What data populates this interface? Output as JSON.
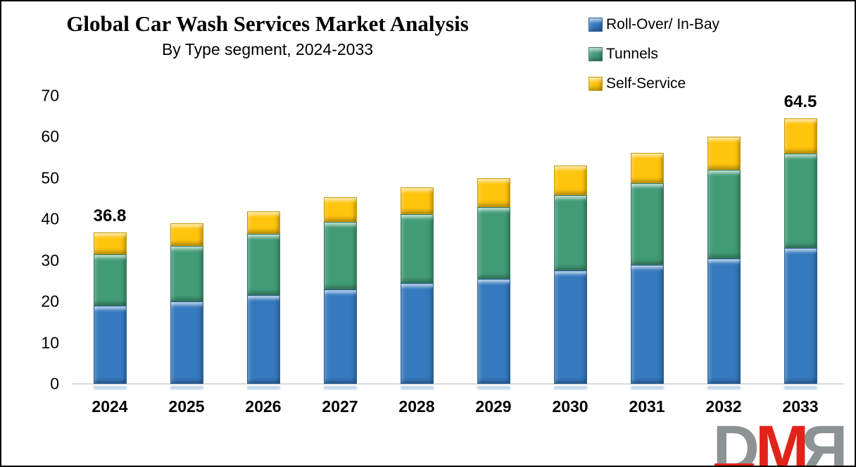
{
  "title": "Global Car Wash Services Market Analysis",
  "subtitle": "By Type segment, 2024-2033",
  "colors": {
    "rollover_blue": "#3579be",
    "tunnels_green": "#419b77",
    "selfservice_yellow": "#ffc40c",
    "baseline_gray": "#d9d9d9",
    "logo_gray": "#8d9394",
    "logo_red": "#e2231a"
  },
  "legend": [
    {
      "label": "Roll-Over/ In-Bay",
      "color": "#3579be"
    },
    {
      "label": "Tunnels",
      "color": "#419b77"
    },
    {
      "label": "Self-Service",
      "color": "#ffc40c"
    }
  ],
  "chart_data": {
    "type": "bar",
    "stacked": true,
    "title": "Global Car Wash Services Market Analysis",
    "subtitle": "By Type segment, 2024-2033",
    "categories": [
      "2024",
      "2025",
      "2026",
      "2027",
      "2028",
      "2029",
      "2030",
      "2031",
      "2032",
      "2033"
    ],
    "series": [
      {
        "name": "Roll-Over/ In-Bay",
        "color": "#3579be",
        "values": [
          19.0,
          20.0,
          21.5,
          23.0,
          24.5,
          25.5,
          27.5,
          29.0,
          30.5,
          33.0
        ]
      },
      {
        "name": "Tunnels",
        "color": "#419b77",
        "values": [
          12.5,
          13.5,
          15.0,
          16.3,
          16.8,
          17.5,
          18.3,
          19.8,
          21.5,
          23.0
        ]
      },
      {
        "name": "Self-Service",
        "color": "#ffc40c",
        "values": [
          5.3,
          5.5,
          5.5,
          6.0,
          6.5,
          7.0,
          7.2,
          7.4,
          8.0,
          8.5
        ]
      }
    ],
    "totals": [
      36.8,
      39.0,
      42.0,
      45.3,
      47.8,
      50.0,
      53.0,
      56.2,
      60.0,
      64.5
    ],
    "value_labels": [
      {
        "category": "2024",
        "text": "36.8"
      },
      {
        "category": "2033",
        "text": "64.5"
      }
    ],
    "ylim": [
      0,
      70
    ],
    "yticks": [
      70,
      60,
      50,
      40,
      30,
      20,
      10,
      0
    ],
    "xlabel": "",
    "ylabel": "",
    "grid": false,
    "legend_position": "top-right"
  },
  "logo": {
    "d": "D",
    "m": "M",
    "r": "R"
  }
}
